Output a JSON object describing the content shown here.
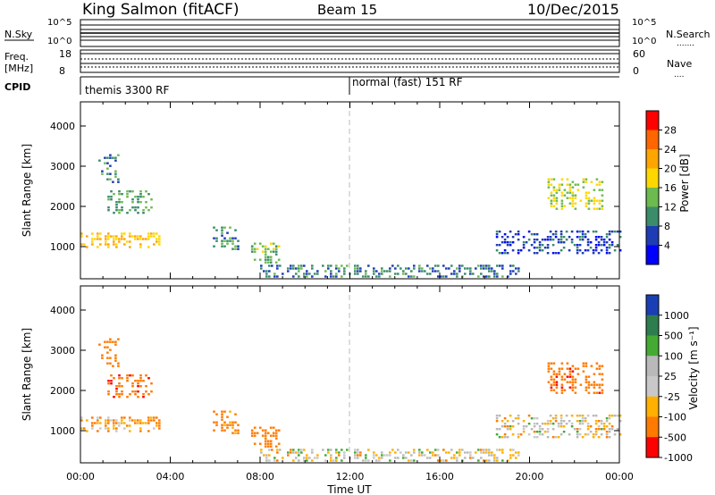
{
  "header": {
    "station": "King Salmon (fitACF)",
    "beam": "Beam 15",
    "date": "10/Dec/2015"
  },
  "top_panels": {
    "nsky_label": "N.Sky",
    "nsky_ticks": [
      "10^5",
      "10^0"
    ],
    "nsearch_label": "N.Search",
    "nsearch_ticks": [
      "10^5",
      "10^0"
    ],
    "freq_label": "Freq.",
    "freq_unit": "[MHz]",
    "freq_ticks": [
      "18",
      "8"
    ],
    "nave_label": "Nave",
    "nave_ticks": [
      "60",
      "0"
    ],
    "cpid_label": "CPID",
    "cpid_segments": [
      {
        "label": "themis 3300 RF",
        "start_hour": 0
      },
      {
        "label": "normal (fast) 151 RF",
        "start_hour": 12
      }
    ]
  },
  "chart_data": [
    {
      "type": "heatmap",
      "panel": "power",
      "ylabel": "Slant Range [km]",
      "xlabel": "",
      "xlim_hours": [
        0,
        24
      ],
      "ylim": [
        200,
        4600
      ],
      "yticks": [
        "1000",
        "2000",
        "3000",
        "4000"
      ],
      "colorbar_label": "Power [dB]",
      "colorbar_ticks": [
        "28",
        "24",
        "20",
        "16",
        "12",
        "8",
        "4"
      ],
      "colorbar_colors": [
        "#ff0000",
        "#ff6600",
        "#ffa500",
        "#ffd700",
        "#6dba4f",
        "#3a8c6a",
        "#1e3cb4",
        "#0000ff"
      ],
      "reference_hour": 12,
      "echo_regions": [
        {
          "t_start": 0.0,
          "t_end": 3.7,
          "r_start": 950,
          "r_end": 1350,
          "level": 20
        },
        {
          "t_start": 0.8,
          "t_end": 1.7,
          "r_start": 2600,
          "r_end": 3300,
          "level": 10
        },
        {
          "t_start": 1.2,
          "t_end": 3.2,
          "r_start": 1800,
          "r_end": 2400,
          "level": 12
        },
        {
          "t_start": 5.9,
          "t_end": 7.0,
          "r_start": 900,
          "r_end": 1500,
          "level": 10
        },
        {
          "t_start": 7.6,
          "t_end": 8.8,
          "r_start": 600,
          "r_end": 1100,
          "level": 14
        },
        {
          "t_start": 8.0,
          "t_end": 19.5,
          "r_start": 250,
          "r_end": 550,
          "level": 9
        },
        {
          "t_start": 18.5,
          "t_end": 24.0,
          "r_start": 800,
          "r_end": 1400,
          "level": 6
        },
        {
          "t_start": 20.8,
          "t_end": 23.2,
          "r_start": 1900,
          "r_end": 2700,
          "level": 16
        }
      ]
    },
    {
      "type": "heatmap",
      "panel": "velocity",
      "ylabel": "Slant Range [km]",
      "xlabel": "Time UT",
      "xlim_hours": [
        0,
        24
      ],
      "ylim": [
        200,
        4600
      ],
      "yticks": [
        "1000",
        "2000",
        "3000",
        "4000"
      ],
      "xticks": [
        "00:00",
        "04:00",
        "08:00",
        "12:00",
        "16:00",
        "20:00",
        "00:00"
      ],
      "colorbar_label": "Velocity [m s⁻¹]",
      "colorbar_ticks": [
        "1000",
        "500",
        "100",
        "25",
        "-25",
        "-100",
        "-500",
        "-1000"
      ],
      "colorbar_colors": [
        "#1a3fb4",
        "#2e7d4f",
        "#44aa33",
        "#b9b9b9",
        "#c8c8c8",
        "#ffb000",
        "#ff7a00",
        "#ff0000"
      ],
      "reference_hour": 12,
      "echo_regions": [
        {
          "t_start": 0.0,
          "t_end": 3.7,
          "r_start": 950,
          "r_end": 1350,
          "level": -100
        },
        {
          "t_start": 0.8,
          "t_end": 1.7,
          "r_start": 2600,
          "r_end": 3300,
          "level": -300
        },
        {
          "t_start": 1.2,
          "t_end": 3.2,
          "r_start": 1800,
          "r_end": 2400,
          "level": -400
        },
        {
          "t_start": 5.9,
          "t_end": 7.0,
          "r_start": 900,
          "r_end": 1500,
          "level": -200
        },
        {
          "t_start": 7.6,
          "t_end": 8.8,
          "r_start": 600,
          "r_end": 1100,
          "level": -300
        },
        {
          "t_start": 8.0,
          "t_end": 19.5,
          "r_start": 250,
          "r_end": 550,
          "level": 10
        },
        {
          "t_start": 18.5,
          "t_end": 24.0,
          "r_start": 800,
          "r_end": 1400,
          "level": 0
        },
        {
          "t_start": 20.8,
          "t_end": 23.2,
          "r_start": 1900,
          "r_end": 2700,
          "level": -400
        }
      ]
    }
  ]
}
